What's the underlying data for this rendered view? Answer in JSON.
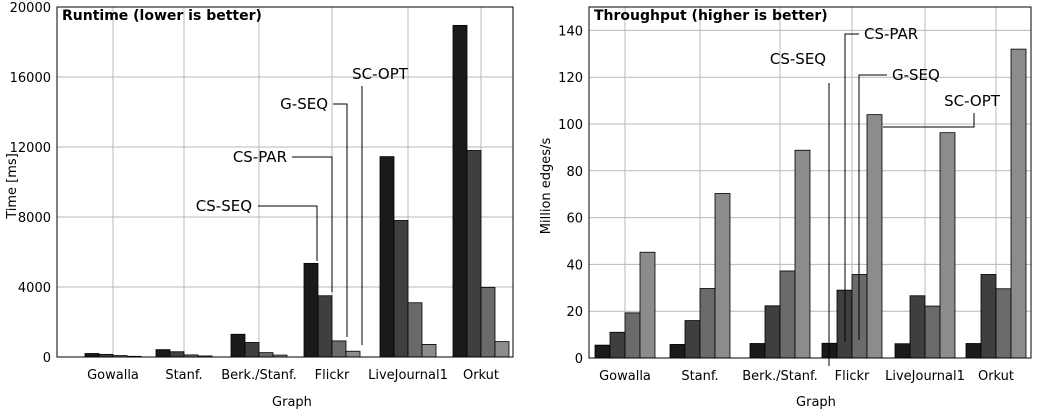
{
  "chart_data": [
    {
      "type": "bar",
      "title": "Runtime (lower is better)",
      "xlabel": "Graph",
      "ylabel": "Time [ms]",
      "ylim": [
        0,
        20000
      ],
      "yticks": [
        0,
        4000,
        8000,
        12000,
        16000,
        20000
      ],
      "grid": true,
      "categories": [
        "Gowalla",
        "Stanf.",
        "Berk./Stanf.",
        "Flickr",
        "LiveJournal1",
        "Orkut"
      ],
      "series": [
        {
          "name": "CS-SEQ",
          "color": "#1a1a1a",
          "values": [
            200,
            420,
            1300,
            5350,
            11450,
            18950
          ]
        },
        {
          "name": "CS-PAR",
          "color": "#3f3f3f",
          "values": [
            150,
            300,
            830,
            3500,
            7800,
            11800
          ]
        },
        {
          "name": "G-SEQ",
          "color": "#6a6a6a",
          "values": [
            80,
            120,
            250,
            920,
            3100,
            3980
          ]
        },
        {
          "name": "SC-OPT",
          "color": "#8c8c8c",
          "values": [
            40,
            60,
            110,
            330,
            720,
            880
          ]
        }
      ],
      "annotations": [
        "CS-SEQ",
        "CS-PAR",
        "G-SEQ",
        "SC-OPT"
      ]
    },
    {
      "type": "bar",
      "title": "Throughput (higher is better)",
      "xlabel": "Graph",
      "ylabel": "Million edges/s",
      "ylim": [
        0,
        150
      ],
      "yticks": [
        0,
        20,
        40,
        60,
        80,
        100,
        120,
        140
      ],
      "grid": true,
      "categories": [
        "Gowalla",
        "Stanf.",
        "Berk./Stanf.",
        "Flickr",
        "LiveJournal1",
        "Orkut"
      ],
      "series": [
        {
          "name": "CS-SEQ",
          "color": "#1a1a1a",
          "values": [
            5.5,
            5.8,
            6.2,
            6.3,
            6.1,
            6.2
          ]
        },
        {
          "name": "CS-PAR",
          "color": "#3f3f3f",
          "values": [
            11,
            16,
            22.3,
            29,
            26.6,
            35.7
          ]
        },
        {
          "name": "G-SEQ",
          "color": "#6a6a6a",
          "values": [
            19.3,
            29.7,
            37.2,
            35.7,
            22.2,
            29.6
          ]
        },
        {
          "name": "SC-OPT",
          "color": "#8c8c8c",
          "values": [
            45.2,
            70.3,
            88.8,
            104,
            96.3,
            132
          ]
        }
      ],
      "annotations": [
        "CS-SEQ",
        "CS-PAR",
        "G-SEQ",
        "SC-OPT"
      ]
    }
  ]
}
